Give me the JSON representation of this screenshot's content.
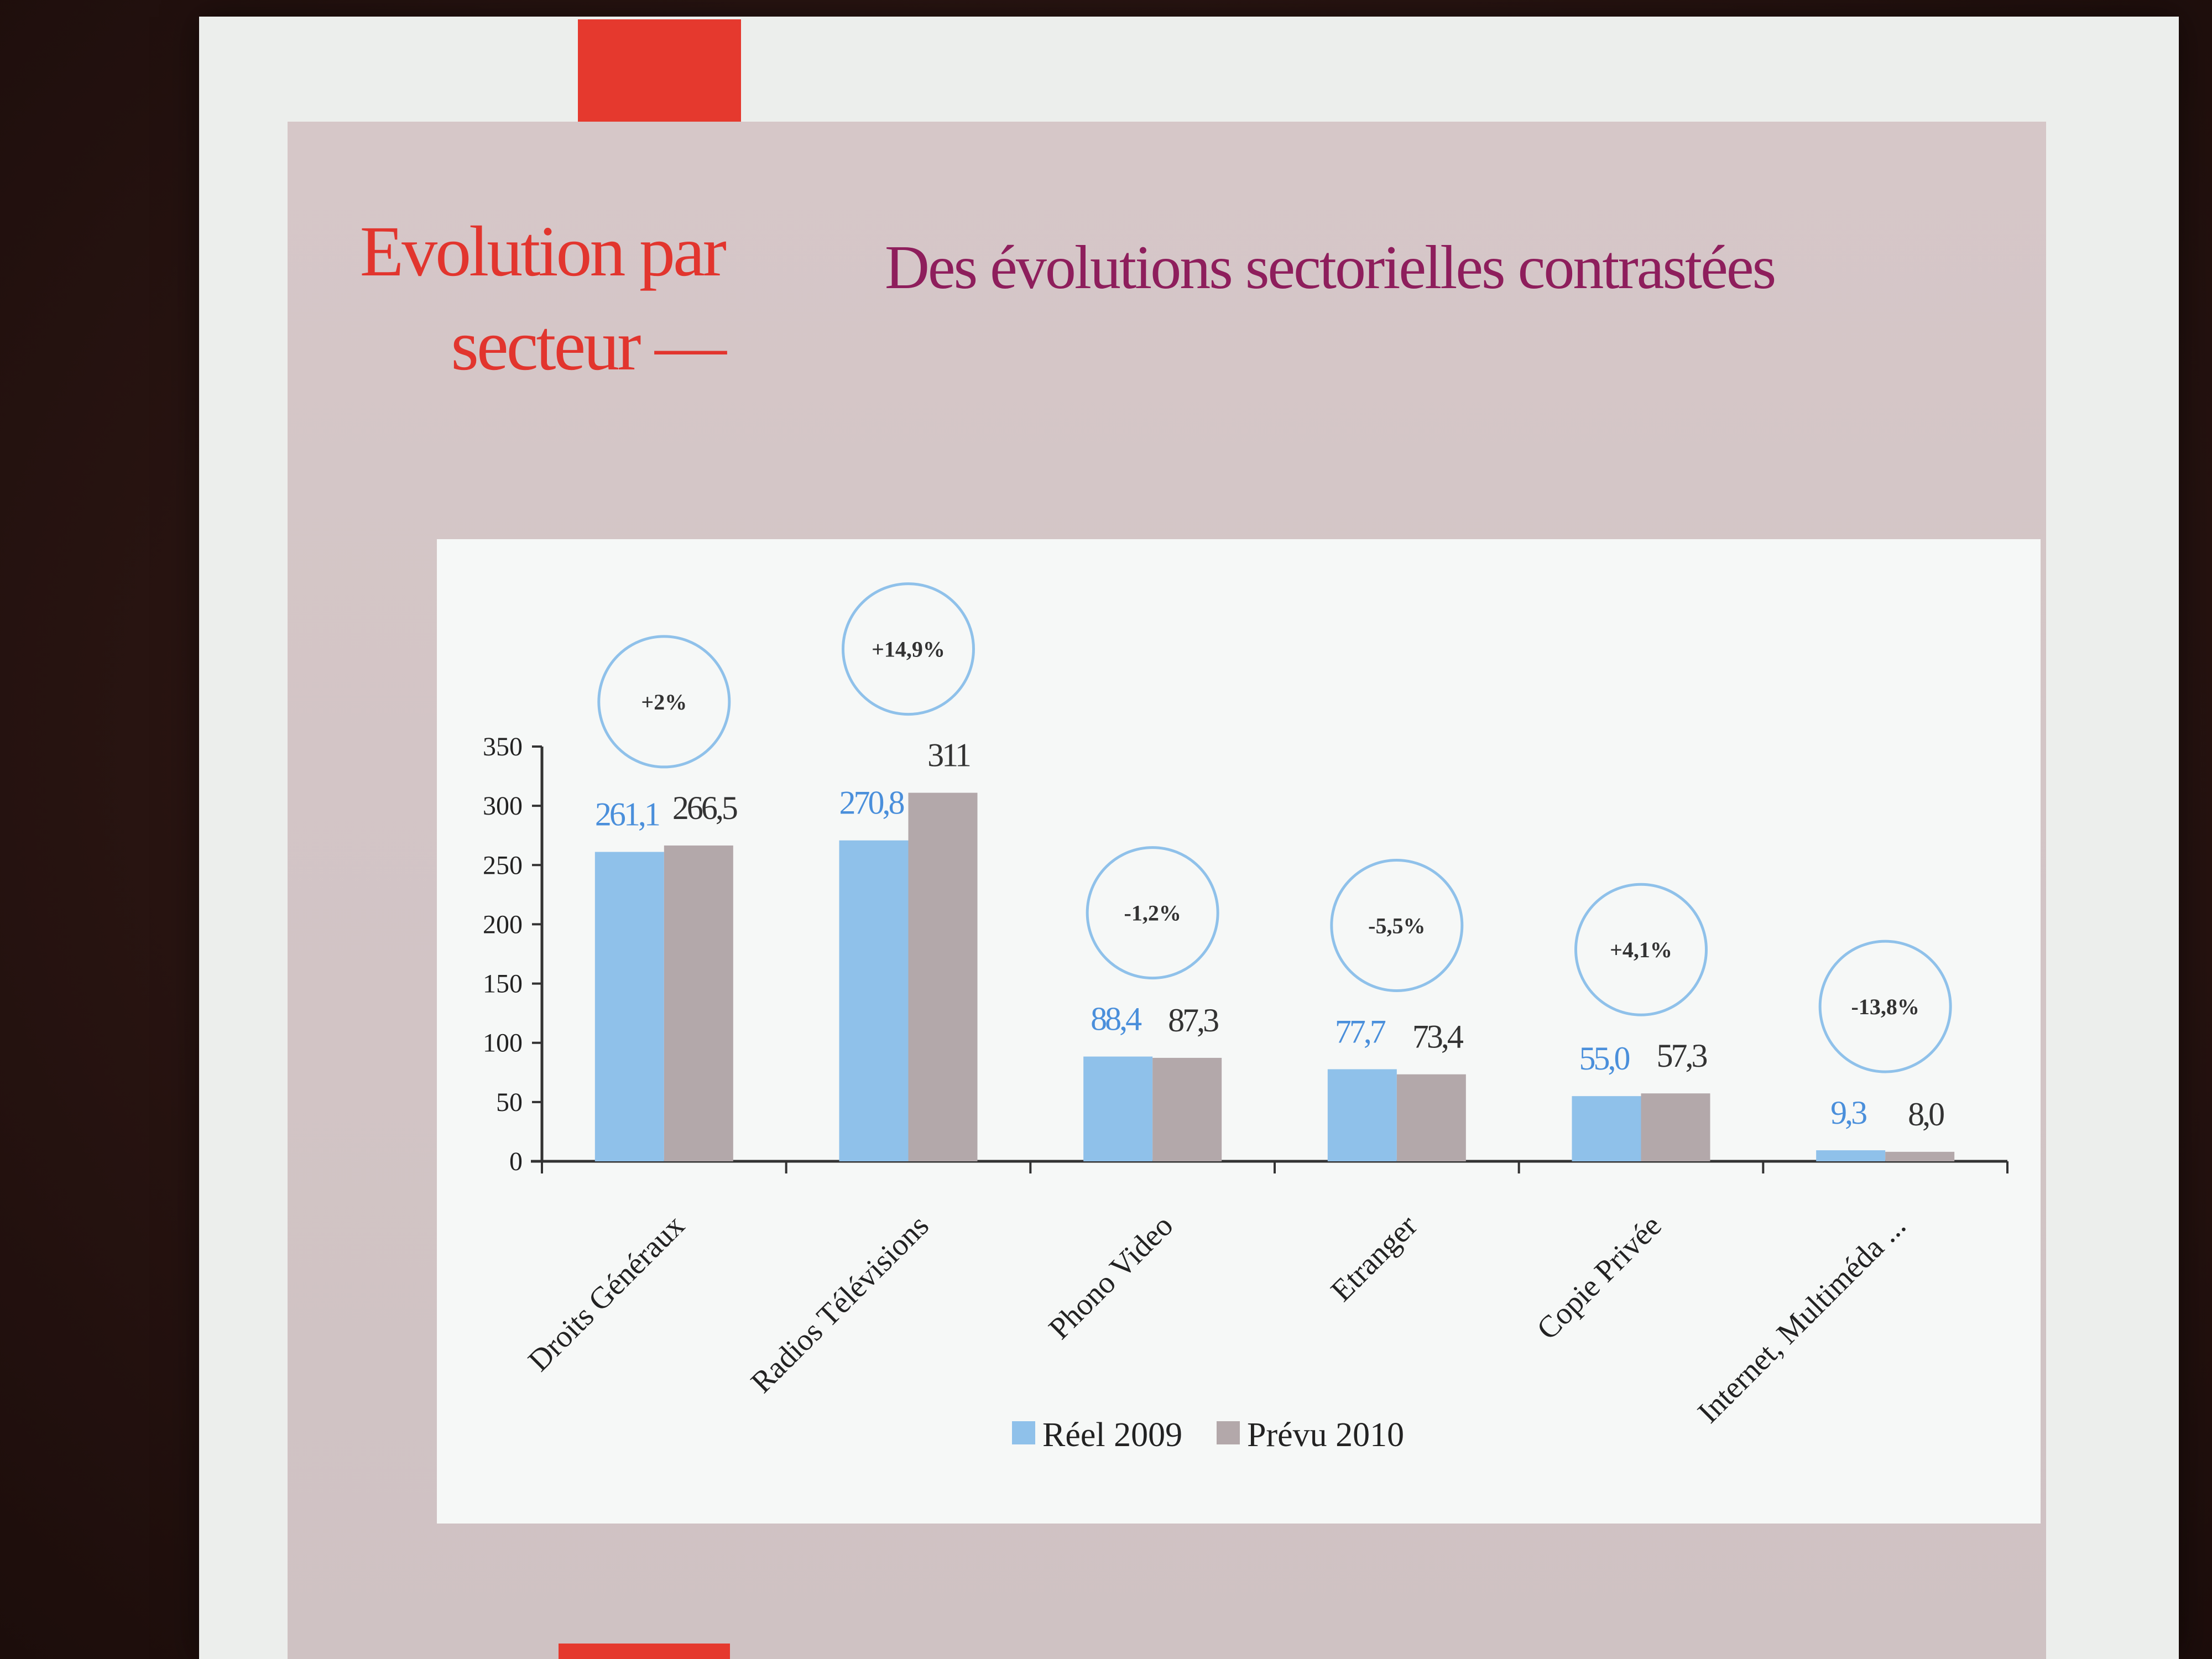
{
  "slide": {
    "title_line1": "Evolution par",
    "title_line2": "secteur —",
    "subtitle": "Des évolutions sectorielles contrastées"
  },
  "colors": {
    "reel": "#8fc1ea",
    "prevu": "#b3a8aa",
    "title": "#e2352e",
    "subtitle": "#8e1e5c",
    "bubble": "#8fc1ea"
  },
  "chart_data": {
    "type": "bar",
    "title": "",
    "xlabel": "",
    "ylabel": "",
    "ylim": [
      0,
      350
    ],
    "yticks": [
      0,
      50,
      100,
      150,
      200,
      250,
      300,
      350
    ],
    "categories": [
      "Droits Généraux",
      "Radios Télévisions",
      "Phono Video",
      "Etranger",
      "Copie Privée",
      "Internet, Multiméda ..."
    ],
    "series": [
      {
        "name": "Réel 2009",
        "values": [
          261.1,
          270.8,
          88.4,
          77.7,
          55.0,
          9.3
        ],
        "labels": [
          "261,1",
          "270,8",
          "88,4",
          "77,7",
          "55,0",
          "9,3"
        ]
      },
      {
        "name": "Prévu 2010",
        "values": [
          266.5,
          311,
          87.3,
          73.4,
          57.3,
          8.0
        ],
        "labels": [
          "266,5",
          "311",
          "87,3",
          "73,4",
          "57,3",
          "8,0"
        ]
      }
    ],
    "annotations": [
      "+2%",
      "+14,9%",
      "-1,2%",
      "-5,5%",
      "+4,1%",
      "-13,8%"
    ],
    "legend_position": "bottom",
    "grid": false
  }
}
